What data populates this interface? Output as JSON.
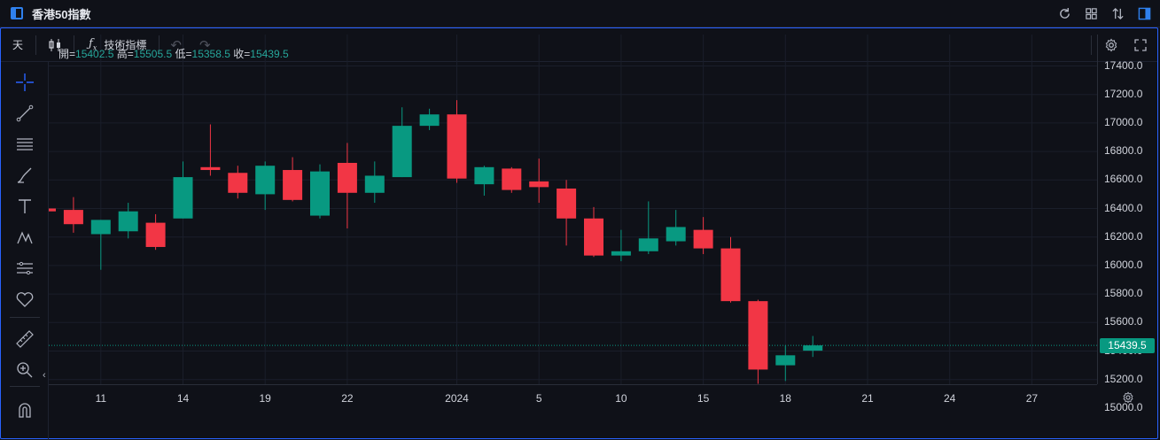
{
  "window": {
    "title": "香港50指數"
  },
  "toolbar": {
    "interval_label": "天",
    "indicators_label": "技術指標"
  },
  "legend": {
    "open_label": "開=",
    "open_value": "15402.5",
    "high_label": "高=",
    "high_value": "15505.5",
    "low_label": "低=",
    "low_value": "15358.5",
    "close_label": "收=",
    "close_value": "15439.5"
  },
  "last_price": "15439.5",
  "colors": {
    "up": "#089981",
    "down": "#f23645",
    "accent": "#2962ff",
    "background": "#0f1118"
  },
  "icons": [
    "crosshair-icon",
    "trend-line-icon",
    "horizontal-lines-icon",
    "brush-icon",
    "text-icon",
    "pattern-icon",
    "measure-lines-icon",
    "heart-icon",
    "ruler-icon",
    "zoom-in-icon",
    "magnet-icon",
    "refresh-icon",
    "layout-grid-icon",
    "compare-icon",
    "sidebar-toggle-icon",
    "settings-gear-icon",
    "fullscreen-icon",
    "undo-icon",
    "redo-icon",
    "candles-icon",
    "function-icon"
  ],
  "chart_data": {
    "type": "candlestick",
    "y_ticks": [
      "17400.0",
      "17200.0",
      "17000.0",
      "16800.0",
      "16600.0",
      "16400.0",
      "16200.0",
      "16000.0",
      "15800.0",
      "15600.0",
      "15400.0",
      "15200.0",
      "15000.0"
    ],
    "ylim": [
      14980,
      17420
    ],
    "x_ticks": [
      "11",
      "14",
      "19",
      "22",
      "2024",
      "5",
      "10",
      "15",
      "18",
      "21",
      "24",
      "27"
    ],
    "candles": [
      {
        "o": 16400,
        "h": 16420,
        "l": 16370,
        "c": 16380
      },
      {
        "o": 16390,
        "h": 16480,
        "l": 16230,
        "c": 16290
      },
      {
        "o": 16220,
        "h": 16320,
        "l": 15970,
        "c": 16320
      },
      {
        "o": 16240,
        "h": 16440,
        "l": 16190,
        "c": 16380
      },
      {
        "o": 16300,
        "h": 16360,
        "l": 16110,
        "c": 16130
      },
      {
        "o": 16330,
        "h": 16730,
        "l": 16330,
        "c": 16620
      },
      {
        "o": 16690,
        "h": 16990,
        "l": 16630,
        "c": 16670
      },
      {
        "o": 16650,
        "h": 16700,
        "l": 16470,
        "c": 16510
      },
      {
        "o": 16500,
        "h": 16730,
        "l": 16390,
        "c": 16700
      },
      {
        "o": 16670,
        "h": 16760,
        "l": 16450,
        "c": 16460
      },
      {
        "o": 16350,
        "h": 16710,
        "l": 16330,
        "c": 16660
      },
      {
        "o": 16720,
        "h": 16860,
        "l": 16260,
        "c": 16510
      },
      {
        "o": 16510,
        "h": 16730,
        "l": 16440,
        "c": 16630
      },
      {
        "o": 16620,
        "h": 17110,
        "l": 16620,
        "c": 16980
      },
      {
        "o": 16980,
        "h": 17100,
        "l": 16950,
        "c": 17060
      },
      {
        "o": 17060,
        "h": 17160,
        "l": 16580,
        "c": 16610
      },
      {
        "o": 16570,
        "h": 16700,
        "l": 16490,
        "c": 16690
      },
      {
        "o": 16680,
        "h": 16690,
        "l": 16510,
        "c": 16530
      },
      {
        "o": 16590,
        "h": 16750,
        "l": 16440,
        "c": 16550
      },
      {
        "o": 16540,
        "h": 16600,
        "l": 16140,
        "c": 16330
      },
      {
        "o": 16330,
        "h": 16410,
        "l": 16060,
        "c": 16070
      },
      {
        "o": 16070,
        "h": 16250,
        "l": 16030,
        "c": 16100
      },
      {
        "o": 16100,
        "h": 16450,
        "l": 16080,
        "c": 16190
      },
      {
        "o": 16170,
        "h": 16390,
        "l": 16140,
        "c": 16270
      },
      {
        "o": 16250,
        "h": 16340,
        "l": 16080,
        "c": 16120
      },
      {
        "o": 16120,
        "h": 16200,
        "l": 15740,
        "c": 15750
      },
      {
        "o": 15750,
        "h": 15760,
        "l": 15170,
        "c": 15270
      },
      {
        "o": 15300,
        "h": 15440,
        "l": 15190,
        "c": 15370
      },
      {
        "o": 15402.5,
        "h": 15505.5,
        "l": 15358.5,
        "c": 15439.5
      }
    ]
  }
}
